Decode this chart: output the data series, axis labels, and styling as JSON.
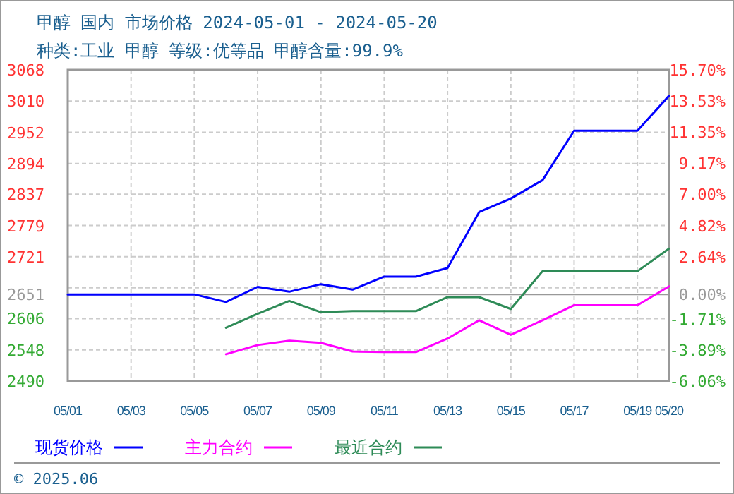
{
  "chart_data": {
    "type": "line",
    "title": "甲醇 国内 市场价格 2024-05-01 - 2024-05-20",
    "subtitle": "种类:工业 甲醇  等级:优等品  甲醇含量:99.9%",
    "annotations": [
      "© 2025.06"
    ],
    "x": [
      "2024-05-01",
      "2024-05-02",
      "2024-05-03",
      "2024-05-04",
      "2024-05-05",
      "2024-05-06",
      "2024-05-07",
      "2024-05-08",
      "2024-05-09",
      "2024-05-10",
      "2024-05-11",
      "2024-05-12",
      "2024-05-13",
      "2024-05-14",
      "2024-05-15",
      "2024-05-16",
      "2024-05-17",
      "2024-05-18",
      "2024-05-19",
      "2024-05-20"
    ],
    "series": [
      {
        "name": "现货价格",
        "color": "#0000ff",
        "values": [
          2651,
          2651,
          2651,
          2651,
          2651,
          2637,
          2665,
          2656,
          2670,
          2660,
          2684,
          2684,
          2700,
          2804,
          2829,
          2863,
          2955,
          2955,
          2955,
          3020
        ]
      },
      {
        "name": "主力合约",
        "color": "#ff00ff",
        "values": [
          null,
          null,
          null,
          null,
          null,
          2540,
          2557,
          2565,
          2561,
          2545,
          2544,
          2544,
          2569,
          2603,
          2576,
          2603,
          2631,
          2631,
          2631,
          2666
        ]
      },
      {
        "name": "最近合约",
        "color": "#2e8b57",
        "values": [
          null,
          null,
          null,
          null,
          null,
          2589,
          2615,
          2639,
          2618,
          2620,
          2620,
          2620,
          2646,
          2646,
          2624,
          2694,
          2694,
          2694,
          2694,
          2736
        ]
      }
    ],
    "xlim": [
      "2024-05-01",
      "2024-05-20"
    ],
    "xticks": [
      {
        "value": "2024-05-01",
        "label": "05/01"
      },
      {
        "value": "2024-05-03",
        "label": "05/03"
      },
      {
        "value": "2024-05-05",
        "label": "05/05"
      },
      {
        "value": "2024-05-07",
        "label": "05/07"
      },
      {
        "value": "2024-05-09",
        "label": "05/09"
      },
      {
        "value": "2024-05-11",
        "label": "05/11"
      },
      {
        "value": "2024-05-13",
        "label": "05/13"
      },
      {
        "value": "2024-05-15",
        "label": "05/15"
      },
      {
        "value": "2024-05-17",
        "label": "05/17"
      },
      {
        "value": "2024-05-19",
        "label": "05/19"
      },
      {
        "value": "2024-05-20",
        "label": "05/20"
      }
    ],
    "ylim": [
      2490,
      3068
    ],
    "yticks": [
      2490,
      2548,
      2606,
      {
        "value": 2663.4,
        "label": null
      },
      2721,
      2779,
      2837,
      2894,
      2952,
      3010,
      3068
    ],
    "y2lim": [
      -6.06,
      15.7
    ],
    "y2ticks": [
      {
        "value": -6.06,
        "label": "-6.06%"
      },
      {
        "value": -3.89,
        "label": "-3.89%"
      },
      {
        "value": -1.71,
        "label": "-1.71%"
      },
      {
        "value": 0,
        "label": "0.00%"
      },
      {
        "value": 2.64,
        "label": "2.64%"
      },
      {
        "value": 4.82,
        "label": "4.82%"
      },
      {
        "value": 7.0,
        "label": "7.00%"
      },
      {
        "value": 9.17,
        "label": "9.17%"
      },
      {
        "value": 11.35,
        "label": "11.35%"
      },
      {
        "value": 13.53,
        "label": "13.53%"
      },
      {
        "value": 15.7,
        "label": "15.70%"
      }
    ],
    "ref_lines": [
      {
        "axis": "y",
        "value": 2651,
        "label": "2651",
        "color": "#999999"
      }
    ],
    "grid": true,
    "legend": "bottom",
    "marker": "none",
    "line_style": "solid"
  }
}
